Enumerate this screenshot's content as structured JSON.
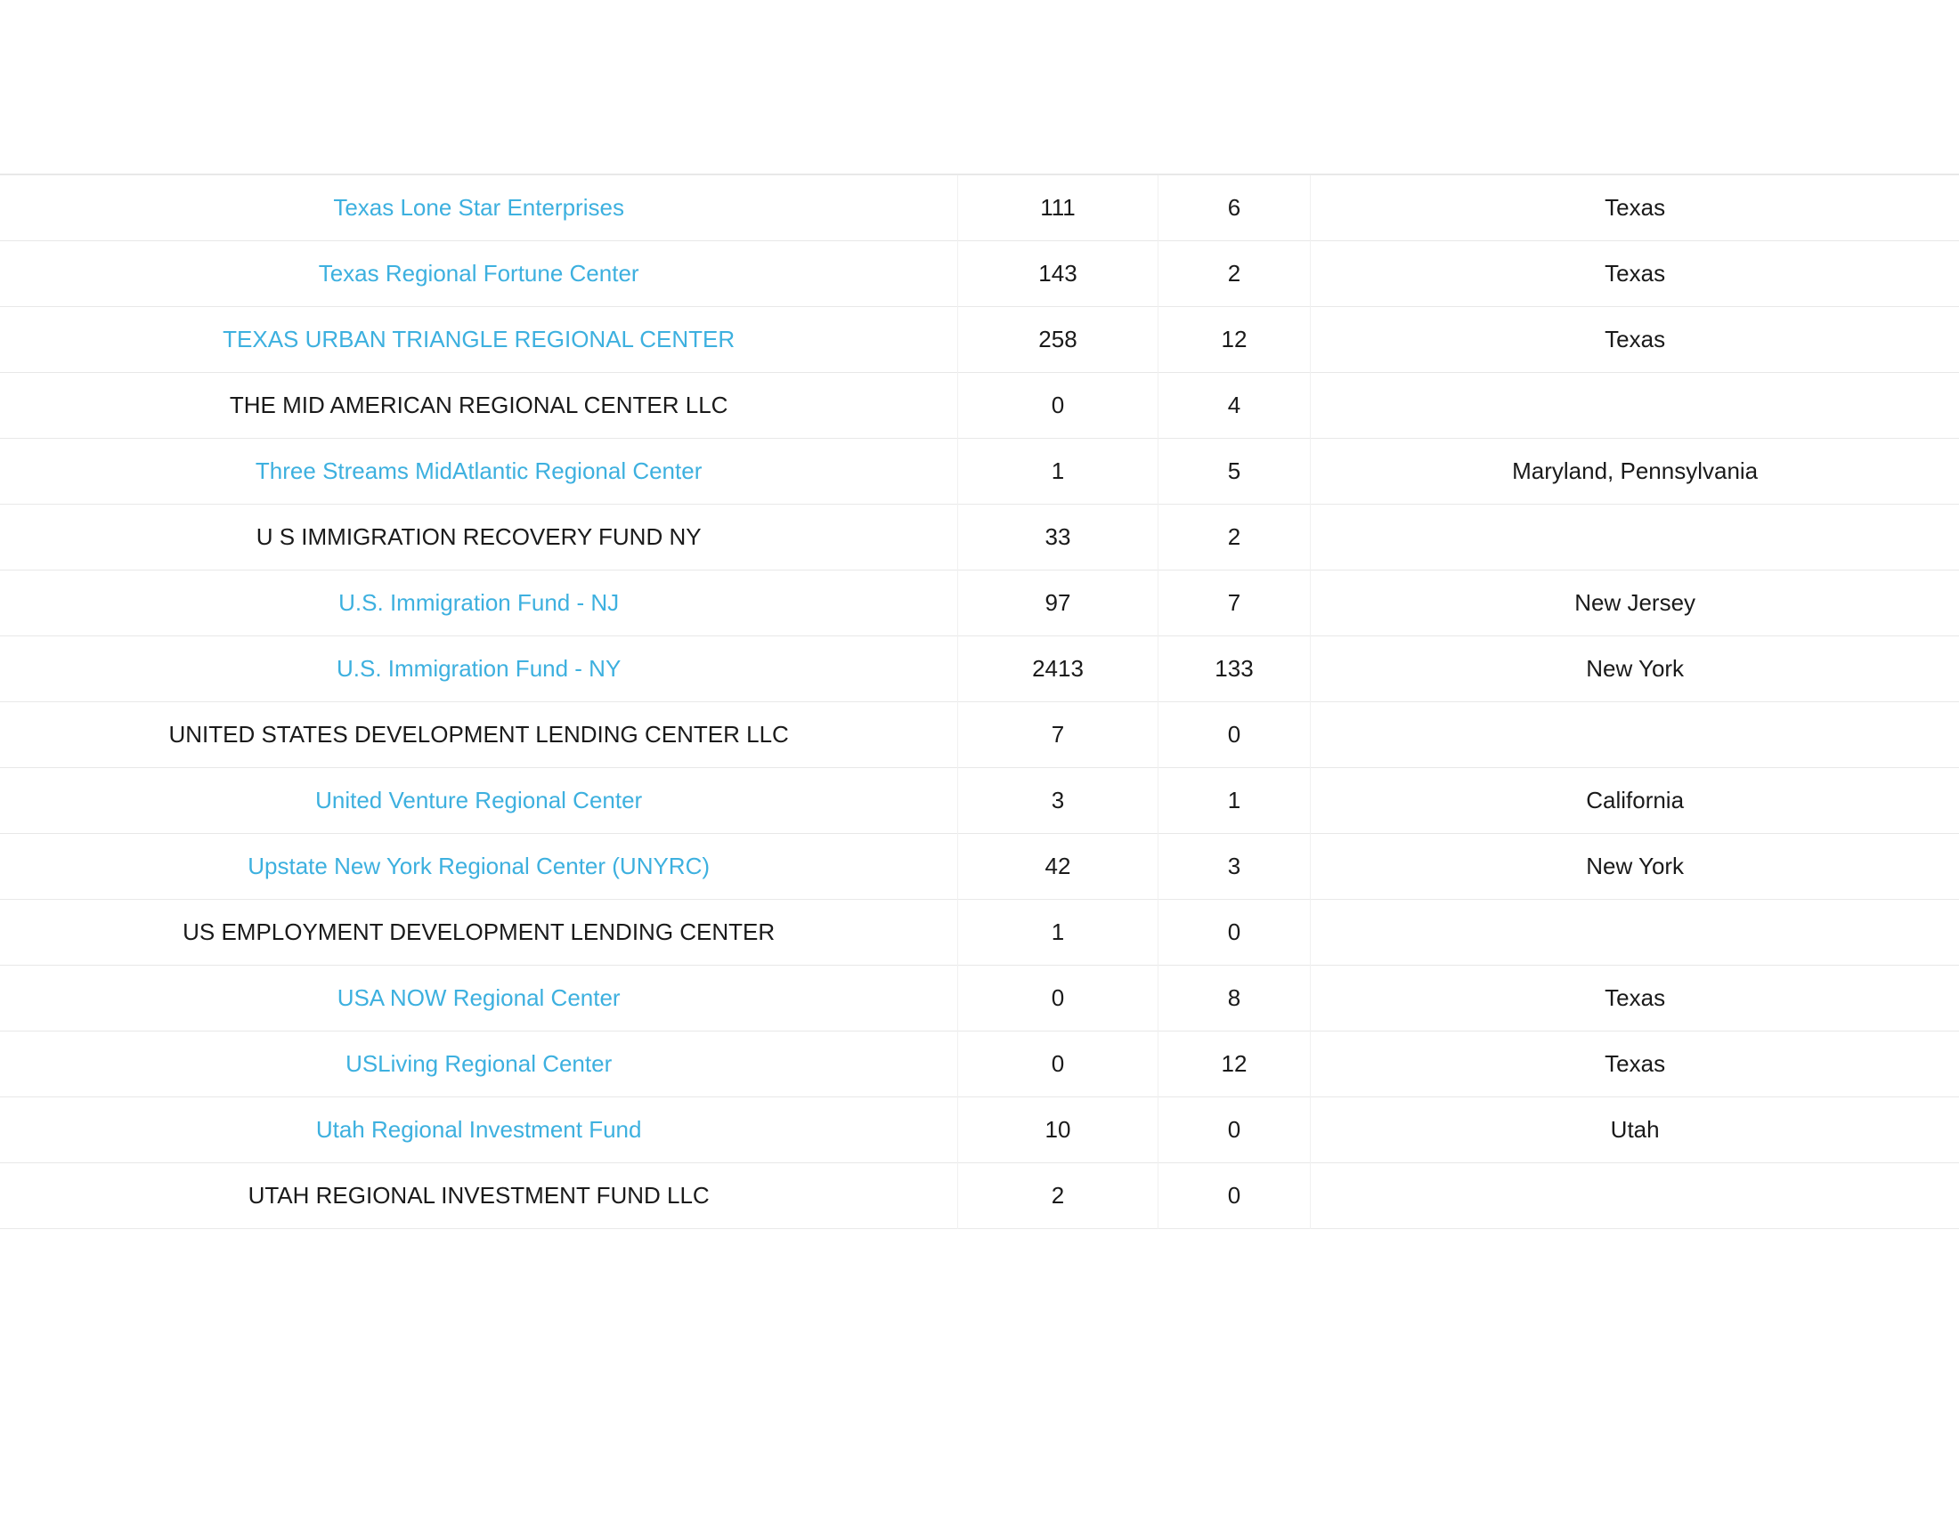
{
  "table": {
    "rows": [
      {
        "name": "Texas Lone Star Enterprises",
        "is_link": true,
        "val1": "111",
        "val2": "6",
        "state": "Texas"
      },
      {
        "name": "Texas Regional Fortune Center",
        "is_link": true,
        "val1": "143",
        "val2": "2",
        "state": "Texas"
      },
      {
        "name": "TEXAS URBAN TRIANGLE REGIONAL CENTER",
        "is_link": true,
        "val1": "258",
        "val2": "12",
        "state": "Texas"
      },
      {
        "name": "THE MID AMERICAN REGIONAL CENTER LLC",
        "is_link": false,
        "val1": "0",
        "val2": "4",
        "state": ""
      },
      {
        "name": "Three Streams MidAtlantic Regional Center",
        "is_link": true,
        "val1": "1",
        "val2": "5",
        "state": "Maryland, Pennsylvania"
      },
      {
        "name": "U S IMMIGRATION RECOVERY FUND NY",
        "is_link": false,
        "val1": "33",
        "val2": "2",
        "state": ""
      },
      {
        "name": "U.S. Immigration Fund - NJ",
        "is_link": true,
        "val1": "97",
        "val2": "7",
        "state": "New Jersey"
      },
      {
        "name": "U.S. Immigration Fund - NY",
        "is_link": true,
        "val1": "2413",
        "val2": "133",
        "state": "New York"
      },
      {
        "name": "UNITED STATES DEVELOPMENT LENDING CENTER LLC",
        "is_link": false,
        "val1": "7",
        "val2": "0",
        "state": ""
      },
      {
        "name": "United Venture Regional Center",
        "is_link": true,
        "val1": "3",
        "val2": "1",
        "state": "California"
      },
      {
        "name": "Upstate New York Regional Center (UNYRC)",
        "is_link": true,
        "val1": "42",
        "val2": "3",
        "state": "New York"
      },
      {
        "name": "US EMPLOYMENT DEVELOPMENT LENDING CENTER",
        "is_link": false,
        "val1": "1",
        "val2": "0",
        "state": ""
      },
      {
        "name": "USA NOW Regional Center",
        "is_link": true,
        "val1": "0",
        "val2": "8",
        "state": "Texas"
      },
      {
        "name": "USLiving Regional Center",
        "is_link": true,
        "val1": "0",
        "val2": "12",
        "state": "Texas"
      },
      {
        "name": "Utah Regional Investment Fund",
        "is_link": true,
        "val1": "10",
        "val2": "0",
        "state": "Utah"
      },
      {
        "name": "UTAH REGIONAL INVESTMENT FUND LLC",
        "is_link": false,
        "val1": "2",
        "val2": "0",
        "state": ""
      }
    ],
    "link_color": "#3db0df",
    "text_color": "#1a1a1a",
    "border_color": "#e8e8e8",
    "background_color": "#ffffff",
    "font_size": 26,
    "column_widths": [
      "48.9%",
      "10.2%",
      "7.8%",
      "33.1%"
    ]
  }
}
